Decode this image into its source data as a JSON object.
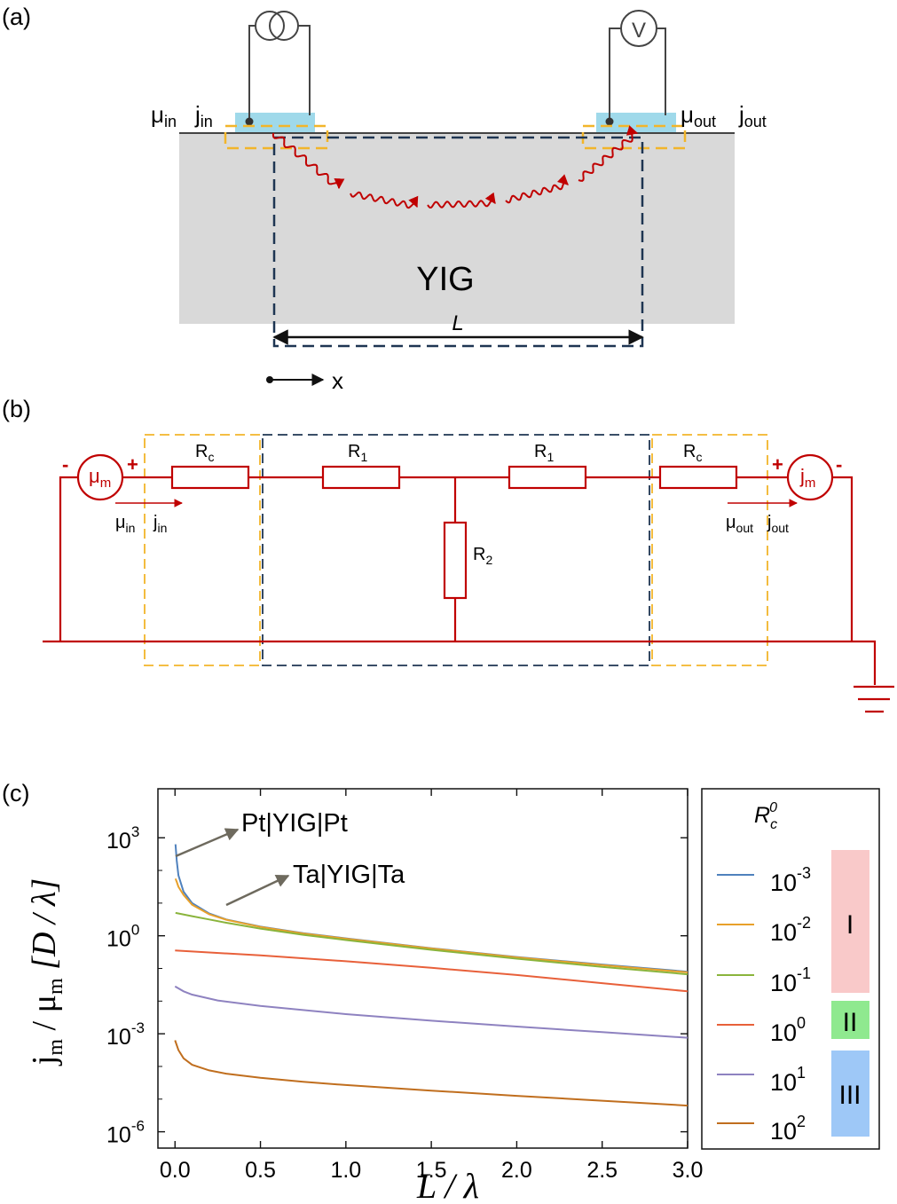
{
  "panel_a": {
    "label": "(a)",
    "material": "YIG",
    "mu_in": "μ",
    "mu_in_sub": "in",
    "j_in": "j",
    "j_in_sub": "in",
    "mu_out": "μ",
    "mu_out_sub": "out",
    "j_out": "j",
    "j_out_sub": "out",
    "length_label": "L",
    "x_label": "x",
    "voltmeter_symbol": "V"
  },
  "panel_b": {
    "label": "(b)",
    "source_left": "μ",
    "source_left_sub": "m",
    "source_right": "j",
    "source_right_sub": "m",
    "minus": "-",
    "plus": "+",
    "rc_label": "R",
    "rc_sub": "c",
    "r1_label": "R",
    "r1_sub": "1",
    "r2_label": "R",
    "r2_sub": "2",
    "mu_in": "μ",
    "mu_in_sub": "in",
    "j_in": "j",
    "j_in_sub": "in",
    "mu_out": "μ",
    "mu_out_sub": "out",
    "j_out": "j",
    "j_out_sub": "out"
  },
  "panel_c": {
    "label": "(c)",
    "annotation_pt": "Pt|YIG|Pt",
    "annotation_ta": "Ta|YIG|Ta",
    "legend_title": "R",
    "legend_title_sub": "c",
    "legend_title_sup": "0",
    "regimes": [
      {
        "label": "I",
        "color": "#f9c9c9"
      },
      {
        "label": "II",
        "color": "#8fe98f"
      },
      {
        "label": "III",
        "color": "#9ec8f7"
      }
    ]
  },
  "colors": {
    "circuit_red": "#c00000",
    "yig_gray": "#d9d9d9",
    "contact_cyan": "#9fd9ea",
    "yellow_dashed": "#f2b52a",
    "navy_dashed": "#1e3552"
  },
  "chart_data": {
    "type": "line",
    "xlabel": "L / λ",
    "ylabel_parts": [
      "j",
      "m",
      " / μ",
      "m",
      " [D / λ]"
    ],
    "xlim": [
      -0.1,
      3.0
    ],
    "ylim_log10": [
      -6.5,
      4.5
    ],
    "y_scale": "log",
    "xticks": [
      0.0,
      0.5,
      1.0,
      1.5,
      2.0,
      2.5,
      3.0
    ],
    "xtick_labels": [
      "0.0",
      "0.5",
      "1.0",
      "1.5",
      "2.0",
      "2.5",
      "3.0"
    ],
    "yticks_log10": [
      3,
      0,
      -3,
      -6
    ],
    "ytick_labels": [
      "10",
      "10",
      "10",
      "10"
    ],
    "ytick_exponents": [
      "3",
      "0",
      "-3",
      "-6"
    ],
    "legend_position": "right",
    "series": [
      {
        "name": "10",
        "exponent": "-3",
        "color": "#4f81bd",
        "x": [
          0.003,
          0.01,
          0.02,
          0.05,
          0.1,
          0.2,
          0.3,
          0.5,
          0.75,
          1.0,
          1.5,
          2.0,
          2.5,
          3.0
        ],
        "log10_y": [
          2.8,
          2.3,
          1.85,
          1.35,
          1.0,
          0.68,
          0.5,
          0.28,
          0.08,
          -0.08,
          -0.38,
          -0.65,
          -0.88,
          -1.1
        ]
      },
      {
        "name": "10",
        "exponent": "-2",
        "color": "#e8a02a",
        "x": [
          0.003,
          0.01,
          0.02,
          0.05,
          0.1,
          0.2,
          0.3,
          0.5,
          0.75,
          1.0,
          1.5,
          2.0,
          2.5,
          3.0
        ],
        "log10_y": [
          1.75,
          1.65,
          1.5,
          1.25,
          0.95,
          0.66,
          0.49,
          0.27,
          0.07,
          -0.09,
          -0.39,
          -0.66,
          -0.9,
          -1.12
        ]
      },
      {
        "name": "10",
        "exponent": "-1",
        "color": "#8ab43c",
        "x": [
          0.003,
          0.1,
          0.2,
          0.3,
          0.5,
          0.75,
          1.0,
          1.5,
          2.0,
          2.5,
          3.0
        ],
        "log10_y": [
          0.7,
          0.6,
          0.5,
          0.4,
          0.22,
          0.03,
          -0.13,
          -0.43,
          -0.7,
          -0.95,
          -1.18
        ]
      },
      {
        "name": "10",
        "exponent": "0",
        "color": "#e8603a",
        "x": [
          0.0,
          0.5,
          1.0,
          1.5,
          2.0,
          2.5,
          3.0
        ],
        "log10_y": [
          -0.45,
          -0.6,
          -0.78,
          -0.98,
          -1.2,
          -1.45,
          -1.7
        ]
      },
      {
        "name": "10",
        "exponent": "1",
        "color": "#8e82c0",
        "x": [
          0.0,
          0.05,
          0.1,
          0.25,
          0.5,
          1.0,
          1.5,
          2.0,
          2.5,
          3.0
        ],
        "log10_y": [
          -1.55,
          -1.7,
          -1.8,
          -1.98,
          -2.15,
          -2.4,
          -2.6,
          -2.78,
          -2.95,
          -3.12
        ]
      },
      {
        "name": "10",
        "exponent": "2",
        "color": "#c06e1e",
        "x": [
          0.0,
          0.02,
          0.05,
          0.1,
          0.2,
          0.3,
          0.5,
          0.75,
          1.0,
          1.5,
          2.0,
          2.5,
          3.0
        ],
        "log10_y": [
          -3.2,
          -3.5,
          -3.75,
          -3.95,
          -4.12,
          -4.22,
          -4.35,
          -4.47,
          -4.57,
          -4.74,
          -4.9,
          -5.05,
          -5.2
        ]
      }
    ]
  }
}
